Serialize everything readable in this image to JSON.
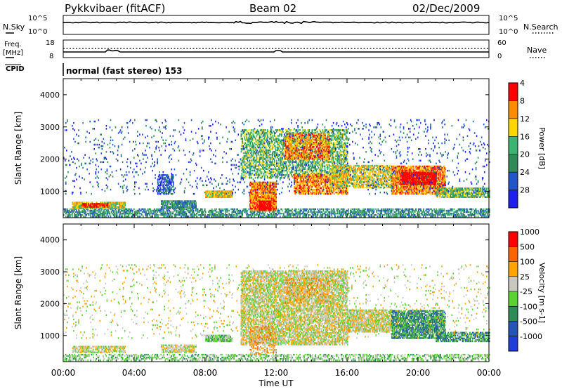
{
  "header": {
    "title": "Pykkvibaer (fitACF)",
    "beam": "Beam 02",
    "date": "02/Dec/2009"
  },
  "params": {
    "nsky_label": "N.Sky",
    "nsky_ticks": [
      "10^5",
      "10^0"
    ],
    "nsearch_label": "N.Search",
    "nsearch_ticks": [
      "10^5",
      "10^0"
    ],
    "freq_label": "Freq.",
    "freq_unit": "[MHz]",
    "freq_ticks": [
      "18",
      "8"
    ],
    "nave_label": "Nave",
    "nave_ticks": [
      "60",
      "0"
    ],
    "cpid_label": "CPID",
    "cpid_text": "normal (fast stereo) 153"
  },
  "chart_data": [
    {
      "type": "heatmap",
      "name": "power",
      "ylabel": "Slant Range [km]",
      "ylim": [
        180,
        4500
      ],
      "yticks": [
        "1000",
        "2000",
        "3000",
        "4000"
      ],
      "xlabel": "Time UT",
      "x_ticks": [
        "00:00",
        "04:00",
        "08:00",
        "12:00",
        "16:00",
        "20:00",
        "00:00"
      ],
      "colorbar": {
        "label": "Power [dB]",
        "ticks": [
          "4",
          "8",
          "12",
          "16",
          "20",
          "24",
          "28"
        ],
        "colors": [
          "#1e1ef0",
          "#2255c8",
          "#2e8b57",
          "#3cb371",
          "#ffd700",
          "#ff8c00",
          "#ff0000"
        ]
      },
      "regions": [
        {
          "t0": 0.0,
          "t1": 24.0,
          "r0": 200,
          "r1": 450,
          "level": 2,
          "density": 0.5
        },
        {
          "t0": 0.5,
          "t1": 3.5,
          "r0": 450,
          "r1": 650,
          "level": 4,
          "density": 0.8
        },
        {
          "t0": 1.0,
          "t1": 2.5,
          "r0": 500,
          "r1": 600,
          "level": 6,
          "density": 0.7
        },
        {
          "t0": 5.5,
          "t1": 7.5,
          "r0": 450,
          "r1": 700,
          "level": 2,
          "density": 0.7
        },
        {
          "t0": 5.3,
          "t1": 6.2,
          "r0": 900,
          "r1": 1500,
          "level": 1,
          "density": 0.5
        },
        {
          "t0": 8.0,
          "t1": 9.5,
          "r0": 800,
          "r1": 1000,
          "level": 4,
          "density": 0.9
        },
        {
          "t0": 10.5,
          "t1": 12.0,
          "r0": 400,
          "r1": 1300,
          "level": 5,
          "density": 0.85
        },
        {
          "t0": 11.0,
          "t1": 11.7,
          "r0": 400,
          "r1": 700,
          "level": 7,
          "density": 0.8
        },
        {
          "t0": 10.0,
          "t1": 16.0,
          "r0": 1400,
          "r1": 2900,
          "level": 3,
          "density": 0.45
        },
        {
          "t0": 12.5,
          "t1": 15.0,
          "r0": 2000,
          "r1": 2800,
          "level": 5,
          "density": 0.5
        },
        {
          "t0": 13.0,
          "t1": 16.0,
          "r0": 900,
          "r1": 1500,
          "level": 5,
          "density": 0.6
        },
        {
          "t0": 15.0,
          "t1": 18.5,
          "r0": 1100,
          "r1": 1800,
          "level": 4,
          "density": 0.55
        },
        {
          "t0": 18.5,
          "t1": 21.5,
          "r0": 900,
          "r1": 1800,
          "level": 5,
          "density": 0.75
        },
        {
          "t0": 19.0,
          "t1": 21.0,
          "r0": 1200,
          "r1": 1600,
          "level": 7,
          "density": 0.7
        },
        {
          "t0": 21.0,
          "t1": 24.0,
          "r0": 800,
          "r1": 1100,
          "level": 3,
          "density": 0.7
        },
        {
          "t0": 0.0,
          "t1": 24.0,
          "r0": 900,
          "r1": 3200,
          "level": 1,
          "density": 0.04
        }
      ]
    },
    {
      "type": "heatmap",
      "name": "velocity",
      "ylabel": "Slant Range [km]",
      "ylim": [
        180,
        4500
      ],
      "yticks": [
        "1000",
        "2000",
        "3000",
        "4000"
      ],
      "xlabel": "Time UT",
      "x_ticks": [
        "00:00",
        "04:00",
        "08:00",
        "12:00",
        "16:00",
        "20:00",
        "00:00"
      ],
      "colorbar": {
        "label": "Velocity [m s-1]",
        "ticks": [
          "1000",
          "500",
          "100",
          "25",
          "-25",
          "-100",
          "-500",
          "-1000"
        ],
        "colors": [
          "#1e3cdc",
          "#2255b4",
          "#2e8b57",
          "#5ad232",
          "#c8c8c0",
          "#ffa500",
          "#ff6400",
          "#ff0000"
        ]
      },
      "regions": [
        {
          "t0": 0.0,
          "t1": 24.0,
          "r0": 200,
          "r1": 420,
          "level": 3,
          "density": 0.35
        },
        {
          "t0": 0.5,
          "t1": 3.5,
          "r0": 450,
          "r1": 650,
          "level": 4,
          "density": 0.6
        },
        {
          "t0": 5.5,
          "t1": 7.5,
          "r0": 450,
          "r1": 700,
          "level": 4,
          "density": 0.6
        },
        {
          "t0": 8.0,
          "t1": 9.5,
          "r0": 800,
          "r1": 1000,
          "level": 3,
          "density": 0.85
        },
        {
          "t0": 10.0,
          "t1": 16.0,
          "r0": 700,
          "r1": 3000,
          "level": 4,
          "density": 0.6
        },
        {
          "t0": 12.5,
          "t1": 15.0,
          "r0": 2000,
          "r1": 2800,
          "level": 5,
          "density": 0.25
        },
        {
          "t0": 10.5,
          "t1": 12.0,
          "r0": 400,
          "r1": 1300,
          "level": 5,
          "density": 0.3
        },
        {
          "t0": 16.0,
          "t1": 18.5,
          "r0": 1100,
          "r1": 1800,
          "level": 4,
          "density": 0.7
        },
        {
          "t0": 18.5,
          "t1": 21.5,
          "r0": 900,
          "r1": 1800,
          "level": 2,
          "density": 0.7
        },
        {
          "t0": 21.0,
          "t1": 24.0,
          "r0": 800,
          "r1": 1100,
          "level": 2,
          "density": 0.6
        },
        {
          "t0": 0.0,
          "t1": 24.0,
          "r0": 900,
          "r1": 3200,
          "level": 4,
          "density": 0.04
        }
      ]
    }
  ]
}
